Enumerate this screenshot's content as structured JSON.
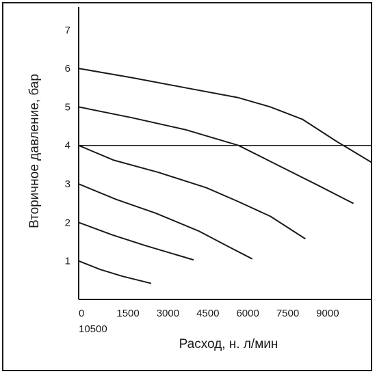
{
  "chart_data": {
    "type": "line",
    "xlabel": "Расход, н. л/мин",
    "ylabel": "Вторичное давление, бар",
    "x_ticks": [
      0,
      1500,
      3000,
      4500,
      6000,
      7500,
      9000
    ],
    "x_extra_tick": "10500",
    "y_ticks": [
      1,
      2,
      3,
      4,
      5,
      6,
      7
    ],
    "xlim": [
      0,
      11000
    ],
    "ylim": [
      0,
      7.6
    ],
    "grid": false,
    "reference_line_y": 4,
    "series": [
      {
        "x": [
          0,
          800,
          1650,
          2700
        ],
        "y": [
          1.0,
          0.78,
          0.6,
          0.42
        ]
      },
      {
        "x": [
          0,
          1250,
          2500,
          4300
        ],
        "y": [
          2.0,
          1.68,
          1.4,
          1.03
        ]
      },
      {
        "x": [
          0,
          1400,
          2900,
          4500,
          5600,
          6500
        ],
        "y": [
          3.0,
          2.6,
          2.24,
          1.78,
          1.38,
          1.06
        ]
      },
      {
        "x": [
          0,
          1300,
          3000,
          4800,
          6000,
          7200,
          8500
        ],
        "y": [
          4.0,
          3.62,
          3.3,
          2.9,
          2.54,
          2.16,
          1.58
        ]
      },
      {
        "x": [
          0,
          2000,
          4000,
          6000,
          7500,
          9000,
          10300
        ],
        "y": [
          5.0,
          4.72,
          4.41,
          4.0,
          3.48,
          2.96,
          2.5
        ]
      },
      {
        "x": [
          0,
          2000,
          4000,
          6000,
          7200,
          8400,
          9700,
          11000
        ],
        "y": [
          6.0,
          5.76,
          5.5,
          5.24,
          5.0,
          4.68,
          4.1,
          3.56
        ]
      }
    ]
  }
}
